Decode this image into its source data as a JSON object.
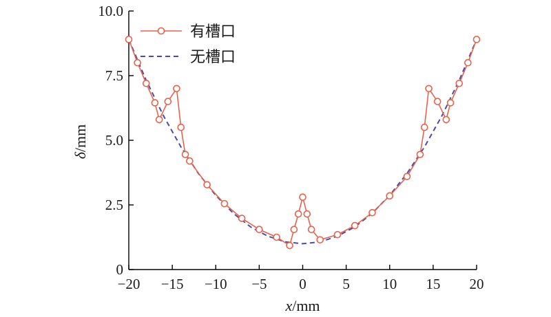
{
  "chart_data": {
    "type": "line",
    "xlabel_var": "x",
    "xlabel_unit": "/mm",
    "ylabel_var": "δ",
    "ylabel_unit": "/mm",
    "xlim": [
      -20,
      20
    ],
    "ylim": [
      0,
      10
    ],
    "xticks": [
      -20,
      -15,
      -10,
      -5,
      0,
      5,
      10,
      15,
      20
    ],
    "yticks": [
      0,
      2.5,
      5.0,
      7.5,
      10.0
    ],
    "ytick_labels": [
      "0",
      "2.5",
      "5.0",
      "7.5",
      "10.0"
    ],
    "grid": false,
    "legend_position": "top-left",
    "series": [
      {
        "name": "有槽口",
        "style": "solid-line-circle-markers",
        "color": "#e8614a",
        "x": [
          -20,
          -19,
          -18,
          -17,
          -16.5,
          -15.5,
          -14.5,
          -14,
          -13.5,
          -13,
          -11,
          -9,
          -7,
          -5,
          -3,
          -1.5,
          -1,
          -0.5,
          0,
          0.5,
          1,
          2,
          4,
          6,
          8,
          10,
          12,
          13.5,
          14,
          14.5,
          15.5,
          16.5,
          17,
          18,
          19,
          20
        ],
        "y": [
          8.9,
          8.0,
          7.2,
          6.45,
          5.8,
          6.5,
          7.0,
          5.5,
          4.45,
          4.2,
          3.28,
          2.55,
          1.98,
          1.55,
          1.25,
          0.93,
          1.55,
          2.15,
          2.8,
          2.15,
          1.55,
          1.15,
          1.35,
          1.7,
          2.2,
          2.85,
          3.6,
          4.45,
          5.5,
          7.0,
          6.5,
          5.8,
          6.45,
          7.2,
          8.0,
          8.9
        ]
      },
      {
        "name": "无槽口",
        "style": "dashed-line",
        "color": "#4a4aa8",
        "x": [
          -20,
          -18,
          -16,
          -14,
          -12,
          -10,
          -8,
          -6,
          -4,
          -2,
          0,
          2,
          4,
          6,
          8,
          10,
          12,
          14,
          16,
          18,
          20
        ],
        "y": [
          8.9,
          7.32,
          5.94,
          4.74,
          3.72,
          2.87,
          2.18,
          1.65,
          1.29,
          1.07,
          1.0,
          1.07,
          1.29,
          1.65,
          2.18,
          2.87,
          3.72,
          4.74,
          5.94,
          7.32,
          8.9
        ]
      }
    ]
  }
}
